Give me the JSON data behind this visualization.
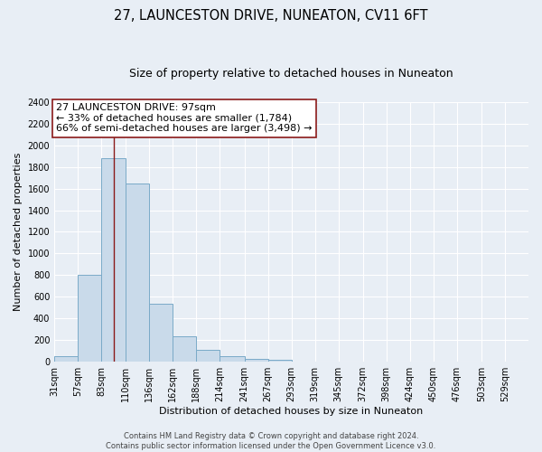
{
  "title": "27, LAUNCESTON DRIVE, NUNEATON, CV11 6FT",
  "subtitle": "Size of property relative to detached houses in Nuneaton",
  "xlabel": "Distribution of detached houses by size in Nuneaton",
  "ylabel": "Number of detached properties",
  "bin_edges": [
    31,
    57,
    83,
    110,
    136,
    162,
    188,
    214,
    241,
    267,
    293,
    319,
    345,
    372,
    398,
    424,
    450,
    476,
    503,
    529,
    555
  ],
  "bin_counts": [
    50,
    800,
    1880,
    1650,
    540,
    235,
    110,
    50,
    30,
    20,
    0,
    0,
    0,
    0,
    0,
    0,
    0,
    0,
    0,
    0
  ],
  "bar_color": "#c9daea",
  "bar_edge_color": "#7aaac8",
  "property_line_x": 97,
  "property_line_color": "#8b1a1a",
  "annotation_line1": "27 LAUNCESTON DRIVE: 97sqm",
  "annotation_line2": "← 33% of detached houses are smaller (1,784)",
  "annotation_line3": "66% of semi-detached houses are larger (3,498) →",
  "annotation_box_color": "white",
  "annotation_box_edge": "#8b1a1a",
  "ylim": [
    0,
    2400
  ],
  "yticks": [
    0,
    200,
    400,
    600,
    800,
    1000,
    1200,
    1400,
    1600,
    1800,
    2000,
    2200,
    2400
  ],
  "footer_line1": "Contains HM Land Registry data © Crown copyright and database right 2024.",
  "footer_line2": "Contains public sector information licensed under the Open Government Licence v3.0.",
  "bg_color": "#e8eef5",
  "plot_bg_color": "#e8eef5",
  "title_fontsize": 10.5,
  "subtitle_fontsize": 9,
  "axis_label_fontsize": 8,
  "tick_label_size": 7,
  "footer_fontsize": 6,
  "annotation_fontsize": 8
}
